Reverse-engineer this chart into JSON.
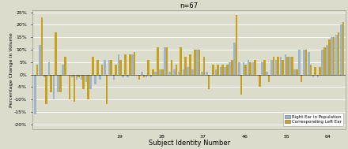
{
  "title": "n=67",
  "xlabel": "Subject Identity Number",
  "ylabel": "Percentage Change In Volume",
  "ylim": [
    -22,
    26
  ],
  "yticks": [
    -20,
    -15,
    -10,
    -5,
    0,
    5,
    10,
    15,
    20,
    25
  ],
  "ytick_labels": [
    "-20%",
    "-15%",
    "-10%",
    "-5%",
    "0%",
    "5%",
    "10%",
    "15%",
    "20%",
    "25%"
  ],
  "right_ear_color": "#a0b4c8",
  "left_ear_color": "#c8a020",
  "background_color": "#dcdccc",
  "grid_color": "#ffffff",
  "right_ear_label": "Right Ear in Population",
  "left_ear_label": "Corresponding Left Ear",
  "xtick_positions": [
    18,
    27,
    36,
    45,
    54,
    63
  ],
  "xtick_labels": [
    "19",
    "28",
    "37",
    "46",
    "55",
    "64"
  ],
  "right_ear_values": [
    -16,
    12,
    -1,
    5,
    -10,
    -7,
    4,
    0,
    -1,
    -2,
    -2,
    -3,
    -6,
    -4,
    -2,
    6,
    6,
    -2,
    8,
    -1,
    -1,
    8,
    0,
    1,
    -1,
    -1,
    1,
    2,
    11,
    1,
    2,
    1,
    2,
    3,
    2,
    10,
    1,
    1,
    0,
    2,
    3,
    3,
    5,
    13,
    5,
    5,
    6,
    5,
    0,
    5,
    1,
    6,
    6,
    7,
    8,
    7,
    2,
    10,
    10,
    9,
    -1,
    -1,
    10,
    12,
    15,
    16,
    20
  ],
  "left_ear_values": [
    4,
    23,
    -12,
    -7,
    17,
    -7,
    7,
    -10,
    -11,
    -1,
    -6,
    -10,
    7,
    6,
    4,
    -12,
    6,
    4,
    6,
    8,
    8,
    9,
    -2,
    -1,
    6,
    2,
    11,
    2,
    11,
    6,
    4,
    11,
    7,
    8,
    10,
    10,
    7,
    -6,
    4,
    4,
    4,
    4,
    6,
    24,
    -8,
    4,
    5,
    6,
    -5,
    6,
    -3,
    7,
    7,
    6,
    7,
    7,
    2,
    -3,
    10,
    4,
    3,
    3,
    11,
    14,
    15,
    17,
    21
  ]
}
